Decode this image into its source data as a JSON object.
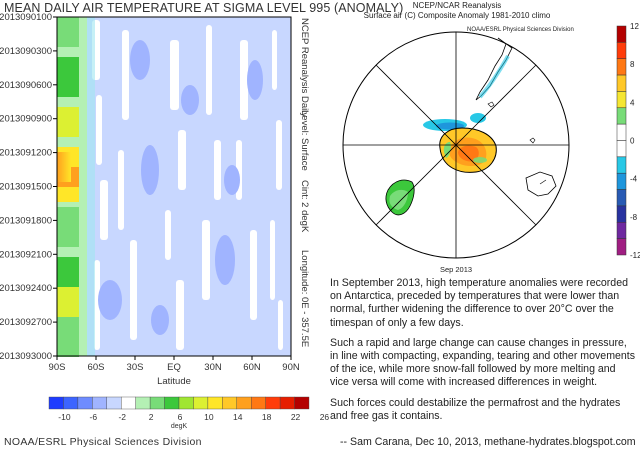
{
  "left_title": "MEAN DAILY AIR TEMPERATURE AT SIGMA LEVEL 995 (ANOMALY)",
  "footer_org": "NOAA/ESRL Physical Sciences Division",
  "chart_data": [
    {
      "type": "heatmap",
      "title": "MEAN DAILY AIR TEMPERATURE AT SIGMA LEVEL 995 (ANOMALY)",
      "xlabel": "Latitude",
      "x_ticks": [
        "90S",
        "60S",
        "30S",
        "EQ",
        "30N",
        "60N",
        "90N"
      ],
      "y_ticks": [
        "2013090100",
        "2013090300",
        "2013090600",
        "2013090900",
        "2013091200",
        "2013091500",
        "2013091800",
        "2013092100",
        "2013092400",
        "2013092700",
        "2013093000"
      ],
      "side_labels": [
        "NCEP Reanalysis Daily",
        "Level: Surface",
        "Cint: 2 degK",
        "Longitude: 0E - 357.5E"
      ],
      "colorbar": {
        "unit": "degK",
        "labels": [
          "-10",
          "-6",
          "-2",
          "2",
          "6",
          "10",
          "14",
          "18",
          "22",
          "26"
        ],
        "colors": [
          "#1e3cff",
          "#3c64ff",
          "#6e8cff",
          "#a0b4ff",
          "#c8d7ff",
          "#ffffff",
          "#b4f0b4",
          "#78dc78",
          "#3cc83c",
          "#a0e632",
          "#dcf032",
          "#ffe628",
          "#ffc828",
          "#ffa01e",
          "#ff7814",
          "#ff3c0a",
          "#e61e00",
          "#b40000"
        ]
      }
    },
    {
      "type": "map",
      "title": "NCEP/NCAR Reanalysis",
      "subtitle": "Surface air (C) Composite Anomaly 1981-2010 climo",
      "credit": "NOAA/ESRL Physical Sciences Division",
      "period": "Sep 2013",
      "colorbar": {
        "labels": [
          "12",
          "8",
          "4",
          "0",
          "-4",
          "-8",
          "-12"
        ],
        "colors": [
          "#b40000",
          "#ff3c0a",
          "#ff7814",
          "#ffc828",
          "#f5e632",
          "#78dc78",
          "#ffffff",
          "#ffffff",
          "#28c8e6",
          "#1e96dc",
          "#285ab4",
          "#2832a0",
          "#6e28a0",
          "#a01e82"
        ]
      }
    }
  ],
  "article": {
    "p1": "In September 2013, high temperature anomalies were recorded on Antarctica, preceded by temperatures that were lower than normal, further widening the difference to over 20°C over the timespan of only a few days.",
    "p2": "Such a rapid and large change can cause changes in pressure, in line with compacting, expanding, tearing and other movements of the ice, while more snow-fall followed by more melting and vice versa will come with increased differences in weight.",
    "p3": "Such forces could destabilize the permafrost and the hydrates and free gas it contains.",
    "credit": "-- Sam Carana, Dec 10, 2013, methane-hydrates.blogspot.com"
  }
}
